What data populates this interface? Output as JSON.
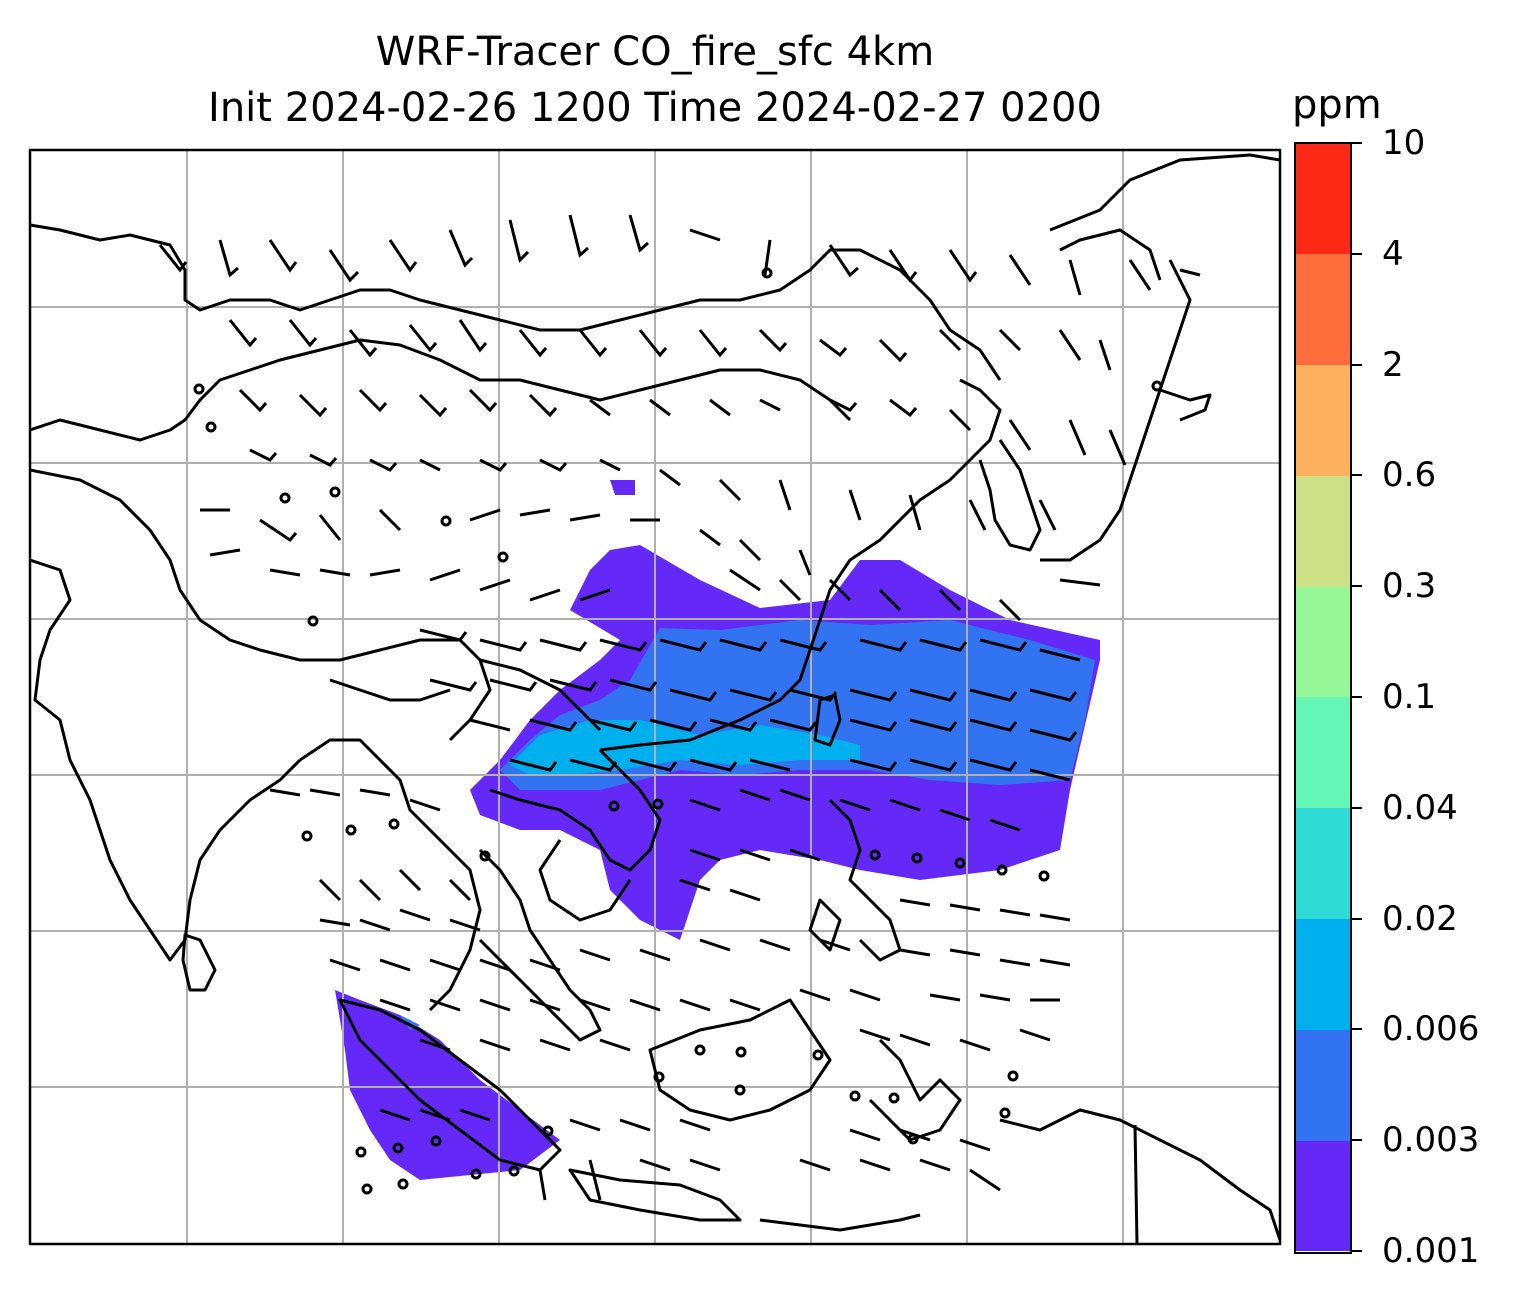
{
  "title": {
    "line1": "WRF-Tracer CO_fire_sfc 4km",
    "line2": "Init 2024-02-26 1200 Time 2024-02-27 0200"
  },
  "colorbar": {
    "unit": "ppm",
    "ticks": [
      "0.001",
      "0.003",
      "0.006",
      "0.02",
      "0.04",
      "0.1",
      "0.3",
      "0.6",
      "2",
      "4",
      "10"
    ],
    "colors": [
      "#6529f7",
      "#3273f2",
      "#00b0ee",
      "#2fdcd6",
      "#64f7b9",
      "#96f799",
      "#cde086",
      "#fdb05d",
      "#fe6d3c",
      "#fd2815"
    ]
  },
  "map": {
    "features": [
      "coastlines",
      "country-borders",
      "lat-lon-gridlines",
      "wind-barbs",
      "calm-wind-circles",
      "CO-fire-tracer-shading"
    ],
    "grid": true
  }
}
